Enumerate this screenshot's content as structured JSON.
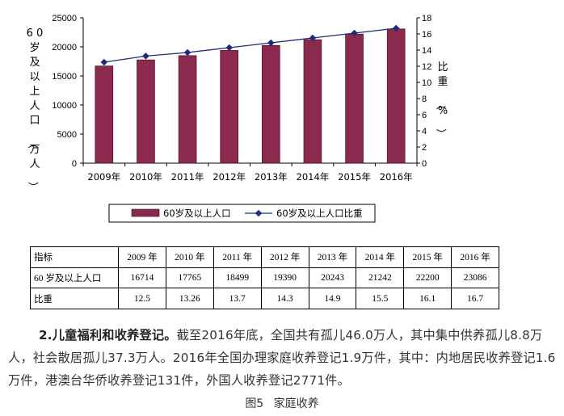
{
  "chart_data": {
    "type": "bar",
    "categories": [
      "2009年",
      "2010年",
      "2011年",
      "2012年",
      "2013年",
      "2014年",
      "2015年",
      "2016年"
    ],
    "series": [
      {
        "name": "60岁及以上人口",
        "type": "bar",
        "axis": "left",
        "color": "#8b2a4e",
        "values": [
          16714,
          17765,
          18499,
          19390,
          20243,
          21242,
          22200,
          23086
        ]
      },
      {
        "name": "60岁及以上人口比重",
        "type": "line",
        "axis": "right",
        "color": "#1f2a7a",
        "values": [
          12.5,
          13.26,
          13.7,
          14.3,
          14.9,
          15.5,
          16.1,
          16.7
        ]
      }
    ],
    "ylabel": "60岁及以上人口（万人）",
    "y2label": "比重（%）",
    "ylim": [
      0,
      25000
    ],
    "y2lim": [
      0,
      18
    ],
    "yticks": [
      "0",
      "5000",
      "10000",
      "15000",
      "20000",
      "25000"
    ],
    "y2ticks": [
      "0",
      "2",
      "4",
      "6",
      "8",
      "10",
      "12",
      "14",
      "16",
      "18"
    ],
    "legend_position": "bottom",
    "grid": false
  },
  "table": {
    "header_label": "指标",
    "years": [
      "2009 年",
      "2010 年",
      "2011 年",
      "2012 年",
      "2013 年",
      "2014 年",
      "2015 年",
      "2016 年"
    ],
    "rows": [
      {
        "label": "60 岁及以上人口",
        "values": [
          "16714",
          "17765",
          "18499",
          "19390",
          "20243",
          "21242",
          "22200",
          "23086"
        ]
      },
      {
        "label": "比重",
        "values": [
          "12.5",
          "13.26",
          "13.7",
          "14.3",
          "14.9",
          "15.5",
          "16.1",
          "16.7"
        ]
      }
    ]
  },
  "paragraph": {
    "lead": "2.儿童福利和收养登记。",
    "body": "截至2016年底，全国共有孤儿46.0万人，其中集中供养孤儿8.8万人，社会散居孤儿37.3万人。2016年全国办理家庭收养登记1.9万件，其中：内地居民收养登记1.6万件，港澳台华侨收养登记131件，外国人收养登记2771件。"
  },
  "caption": "图5 家庭收养"
}
